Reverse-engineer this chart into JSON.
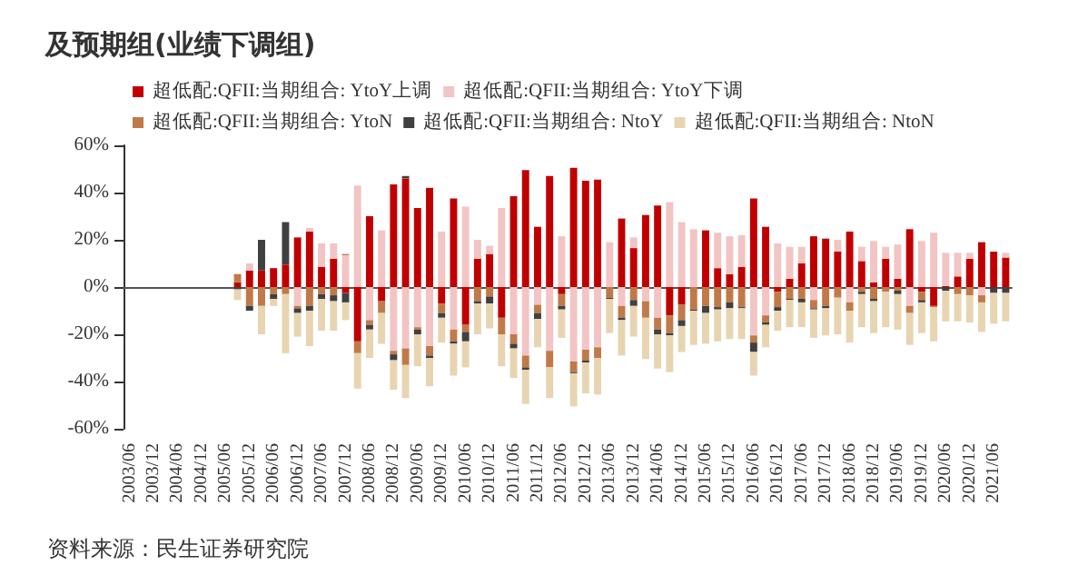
{
  "chart_data": {
    "type": "bar",
    "title": "及预期组(业绩下调组)",
    "stacked": true,
    "legend": "top",
    "categories": [
      "2003/06",
      null,
      "2003/12",
      null,
      "2004/06",
      null,
      "2004/12",
      null,
      "2005/06",
      null,
      "2005/12",
      null,
      "2006/06",
      null,
      "2006/12",
      null,
      "2007/06",
      null,
      "2007/12",
      null,
      "2008/06",
      null,
      "2008/12",
      null,
      "2009/06",
      null,
      "2009/12",
      null,
      "2010/06",
      null,
      "2010/12",
      null,
      "2011/06",
      null,
      "2011/12",
      null,
      "2012/06",
      null,
      "2012/12",
      null,
      "2013/06",
      null,
      "2013/12",
      null,
      "2014/06",
      null,
      "2014/12",
      null,
      "2015/06",
      null,
      "2015/12",
      null,
      "2016/06",
      null,
      "2016/12",
      null,
      "2017/06",
      null,
      "2017/12",
      null,
      "2018/06",
      null,
      "2018/12",
      null,
      "2019/06",
      null,
      "2019/12",
      null,
      "2020/06",
      null,
      "2020/12",
      null,
      "2021/06",
      null
    ],
    "series": [
      {
        "name": "超低配:QFII:当期组合: YtoY上调",
        "color": "#c00000",
        "values": [
          null,
          null,
          null,
          null,
          null,
          null,
          null,
          null,
          null,
          2,
          7,
          7,
          8,
          9.5,
          21,
          23.5,
          8.5,
          12,
          -2.5,
          -23,
          30,
          -6,
          43.5,
          46,
          33.5,
          42,
          -7,
          37.5,
          -16,
          12,
          14,
          -13,
          38.5,
          49.5,
          25.5,
          47,
          -3,
          50.5,
          45,
          45.5,
          0,
          29,
          16.5,
          30.5,
          34.5,
          -12,
          -7.5,
          0,
          24,
          8,
          5.5,
          8.5,
          37.5,
          25.5,
          -2,
          3.5,
          10,
          21.5,
          20.5,
          15,
          23.5,
          11,
          2,
          12,
          3.5,
          24.5,
          -2,
          -8,
          0.5,
          4.5,
          12,
          19,
          15,
          12.5
        ]
      },
      {
        "name": "超低配:QFII:当期组合: YtoY下调",
        "color": "#f2c4c4",
        "values": [
          null,
          null,
          null,
          null,
          null,
          null,
          null,
          null,
          null,
          0,
          3,
          0,
          0,
          0,
          -8,
          1.5,
          10,
          6.5,
          13.5,
          43,
          -14,
          24,
          -27,
          -26,
          -17,
          -25,
          23.5,
          -18,
          34,
          8,
          3.5,
          33.5,
          -20,
          -29,
          -7.5,
          -27,
          21.5,
          -31.5,
          -26.5,
          -25.5,
          19,
          -8,
          4.5,
          -6,
          -13,
          36,
          27.5,
          24.5,
          0,
          15,
          16,
          13.5,
          -20.5,
          -12,
          18.5,
          13.5,
          7,
          -5.5,
          0,
          5,
          -6.5,
          6,
          17.5,
          5,
          14.5,
          -8,
          19.5,
          23,
          14,
          10,
          2.5,
          -3.5,
          0,
          2
        ]
      },
      {
        "name": "超低配:QFII:当期组合: YtoN",
        "color": "#c07a48",
        "values": [
          null,
          null,
          null,
          null,
          null,
          null,
          null,
          null,
          null,
          3.5,
          -8,
          -8,
          -3,
          -3,
          -1,
          -8,
          -3,
          -3.5,
          0.5,
          -5,
          -2,
          -5,
          -1.5,
          -7,
          -1,
          -4,
          -4,
          -5,
          -3,
          -6,
          -4,
          -7,
          -4,
          -5,
          -3.5,
          -7,
          -5,
          -4.5,
          -4.5,
          -4.5,
          -4.5,
          -5,
          -5.5,
          -7,
          -5,
          -7.5,
          -6.5,
          -9.5,
          -8,
          -8.5,
          -6.5,
          -8.5,
          -3,
          -3,
          -6.5,
          -5,
          -5,
          -3.5,
          -8,
          -4.5,
          -3.5,
          -2,
          -5,
          -2,
          -1.5,
          -3,
          -3.5,
          -0.5,
          0,
          -3,
          -3.5,
          -3,
          0,
          0
        ]
      },
      {
        "name": "超低配:QFII:当期组合: NtoY",
        "color": "#404040",
        "values": [
          null,
          null,
          null,
          null,
          null,
          null,
          null,
          null,
          null,
          -1,
          -2,
          13,
          -2,
          18,
          -2,
          -2,
          -2,
          -2.5,
          -4,
          0,
          -2,
          0,
          -2.5,
          1,
          -2,
          -1,
          -2,
          -1,
          -4,
          -1,
          -3,
          0,
          -2,
          -1,
          -2.5,
          0,
          -1.5,
          -0.5,
          -1,
          0,
          -0.5,
          -1,
          -2.5,
          0,
          -2,
          -1,
          -2.5,
          -0.5,
          -3,
          -1,
          -2.5,
          -0.5,
          -4,
          -1,
          -1.5,
          -0.5,
          -1.5,
          -0.5,
          -1,
          0,
          0,
          -1,
          -1,
          0,
          -1.5,
          0,
          -1,
          0,
          -1.5,
          0,
          0,
          0,
          -2.5,
          -2.5
        ]
      },
      {
        "name": "超低配:QFII:当期组合: NtoN",
        "color": "#e8d4b0",
        "values": [
          null,
          null,
          null,
          null,
          null,
          null,
          null,
          null,
          null,
          -4.5,
          0,
          -12,
          -3,
          -25,
          -10,
          -15,
          -13.5,
          -12.5,
          -7.5,
          -15,
          -12,
          -13,
          -12.5,
          -14,
          -13.5,
          -12,
          -10.5,
          -13.5,
          -11,
          -13,
          -10.5,
          -13.5,
          -12.5,
          -14.5,
          -12,
          -13,
          -12,
          -14,
          -13,
          -15.5,
          -14.5,
          -15,
          -13,
          -17.5,
          -14.5,
          -15.5,
          -11,
          -14.5,
          -13,
          -13.5,
          -13,
          -13,
          -10,
          -9.5,
          -8.5,
          -11.5,
          -10.5,
          -12,
          -11.5,
          -15.5,
          -13.5,
          -14,
          -13.5,
          -15,
          -15,
          -13.5,
          -13,
          -14.5,
          -13,
          -11.5,
          -11.5,
          -12.5,
          -13,
          -12
        ]
      }
    ],
    "ylim": [
      -60,
      60
    ],
    "yticks": [
      {
        "value": -60,
        "label": "-60%"
      },
      {
        "value": -40,
        "label": "-40%"
      },
      {
        "value": -20,
        "label": "-20%"
      },
      {
        "value": 0,
        "label": "0%"
      },
      {
        "value": 20,
        "label": "20%"
      },
      {
        "value": 40,
        "label": "40%"
      },
      {
        "value": 60,
        "label": "60%"
      }
    ],
    "annotations": [
      "资料来源：民生证券研究院"
    ]
  }
}
